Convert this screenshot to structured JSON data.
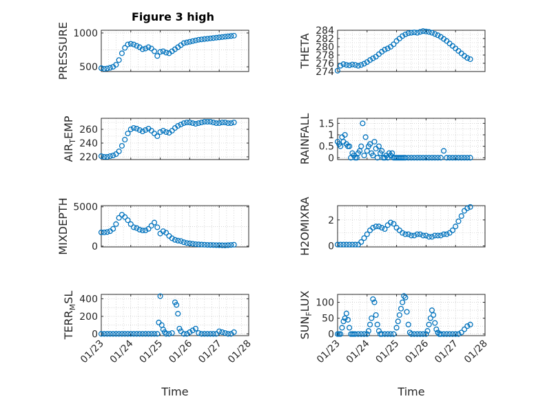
{
  "figure": {
    "title": "Figure 3 high"
  },
  "style": {
    "marker_color": "#0072BD",
    "axis_color": "#262626",
    "grid_color": "#b8b8b8"
  },
  "date_ticks": [
    "01/23",
    "01/24",
    "01/25",
    "01/26",
    "01/27",
    "01/28"
  ],
  "chart_data": [
    {
      "type": "scatter",
      "ylabel": "PRESSURE",
      "ylabel_main": "PRESSURE",
      "ylabel_sub": "",
      "ylabel_tail": "",
      "xlabel": "",
      "xlim": [
        0,
        5
      ],
      "ylim": [
        430,
        1040
      ],
      "yticks": [
        "500",
        "1000"
      ],
      "ytick_values": [
        500,
        1000
      ],
      "grid": true,
      "x_tick_labels_shown": false,
      "x": [
        0.0,
        0.1,
        0.2,
        0.3,
        0.4,
        0.5,
        0.6,
        0.7,
        0.8,
        0.9,
        1.0,
        1.1,
        1.2,
        1.3,
        1.4,
        1.5,
        1.6,
        1.7,
        1.8,
        1.9,
        2.0,
        2.1,
        2.2,
        2.3,
        2.4,
        2.5,
        2.6,
        2.7,
        2.8,
        2.9,
        3.0,
        3.1,
        3.2,
        3.3,
        3.4,
        3.5,
        3.6,
        3.7,
        3.8,
        3.9,
        4.0,
        4.1,
        4.2,
        4.3,
        4.4,
        4.5
      ],
      "y": [
        480,
        470,
        475,
        485,
        500,
        530,
        600,
        700,
        780,
        830,
        840,
        830,
        810,
        790,
        760,
        770,
        790,
        770,
        730,
        660,
        720,
        730,
        710,
        700,
        730,
        760,
        790,
        820,
        850,
        860,
        870,
        880,
        890,
        900,
        905,
        910,
        915,
        920,
        925,
        930,
        935,
        940,
        945,
        950,
        955,
        960
      ]
    },
    {
      "type": "scatter",
      "ylabel": "THETA",
      "ylabel_main": "THETA",
      "ylabel_sub": "",
      "ylabel_tail": "",
      "xlabel": "",
      "xlim": [
        0,
        5
      ],
      "ylim": [
        274,
        284
      ],
      "yticks": [
        "274",
        "276",
        "278",
        "280",
        "282",
        "284"
      ],
      "ytick_values": [
        274,
        276,
        278,
        280,
        282,
        284
      ],
      "grid": true,
      "x_tick_labels_shown": false,
      "x": [
        0.0,
        0.1,
        0.2,
        0.3,
        0.4,
        0.5,
        0.6,
        0.7,
        0.8,
        0.9,
        1.0,
        1.1,
        1.2,
        1.3,
        1.4,
        1.5,
        1.6,
        1.7,
        1.8,
        1.9,
        2.0,
        2.1,
        2.2,
        2.3,
        2.4,
        2.5,
        2.6,
        2.7,
        2.8,
        2.9,
        3.0,
        3.1,
        3.2,
        3.3,
        3.4,
        3.5,
        3.6,
        3.7,
        3.8,
        3.9,
        4.0,
        4.1,
        4.2,
        4.3,
        4.4,
        4.5
      ],
      "y": [
        274.2,
        275.4,
        275.8,
        275.6,
        275.5,
        275.7,
        275.6,
        275.4,
        275.6,
        275.9,
        276.3,
        276.8,
        277.2,
        277.6,
        278.2,
        278.8,
        279.3,
        279.6,
        280.0,
        280.6,
        281.4,
        282.0,
        282.6,
        283.0,
        283.3,
        283.4,
        283.5,
        283.4,
        283.6,
        283.8,
        283.7,
        283.6,
        283.4,
        283.1,
        282.8,
        282.4,
        281.9,
        281.4,
        280.8,
        280.2,
        279.6,
        279.0,
        278.4,
        277.8,
        277.3,
        277.0
      ]
    },
    {
      "type": "scatter",
      "ylabel": "AIR_TEMP",
      "ylabel_main": "AIR",
      "ylabel_sub": "T",
      "ylabel_tail": "EMP",
      "xlabel": "",
      "xlim": [
        0,
        5
      ],
      "ylim": [
        216,
        276
      ],
      "yticks": [
        "220",
        "240",
        "260"
      ],
      "ytick_values": [
        220,
        240,
        260
      ],
      "grid": true,
      "x_tick_labels_shown": false,
      "x": [
        0.0,
        0.1,
        0.2,
        0.3,
        0.4,
        0.5,
        0.6,
        0.7,
        0.8,
        0.9,
        1.0,
        1.1,
        1.2,
        1.3,
        1.4,
        1.5,
        1.6,
        1.7,
        1.8,
        1.9,
        2.0,
        2.1,
        2.2,
        2.3,
        2.4,
        2.5,
        2.6,
        2.7,
        2.8,
        2.9,
        3.0,
        3.1,
        3.2,
        3.3,
        3.4,
        3.5,
        3.6,
        3.7,
        3.8,
        3.9,
        4.0,
        4.1,
        4.2,
        4.3,
        4.4,
        4.5
      ],
      "y": [
        221,
        220,
        220,
        221,
        222,
        224,
        228,
        236,
        245,
        254,
        260,
        262,
        261,
        259,
        257,
        259,
        261,
        258,
        254,
        250,
        256,
        258,
        256,
        255,
        258,
        262,
        265,
        267,
        269,
        270,
        270,
        269,
        268,
        269,
        270,
        271,
        271,
        271,
        270,
        269,
        269,
        270,
        270,
        269,
        269,
        270
      ]
    },
    {
      "type": "scatter",
      "ylabel": "RAINFALL",
      "ylabel_main": "RAINFALL",
      "ylabel_sub": "",
      "ylabel_tail": "",
      "xlabel": "",
      "xlim": [
        0,
        5
      ],
      "ylim": [
        -0.08,
        1.72
      ],
      "yticks": [
        "0",
        "0.5",
        "1",
        "1.5"
      ],
      "ytick_values": [
        0,
        0.5,
        1,
        1.5
      ],
      "grid": true,
      "x_tick_labels_shown": false,
      "x": [
        0.0,
        0.05,
        0.1,
        0.15,
        0.2,
        0.25,
        0.3,
        0.35,
        0.4,
        0.45,
        0.5,
        0.55,
        0.6,
        0.65,
        0.7,
        0.75,
        0.8,
        0.85,
        0.9,
        0.95,
        1.0,
        1.05,
        1.1,
        1.15,
        1.2,
        1.25,
        1.3,
        1.35,
        1.4,
        1.45,
        1.5,
        1.55,
        1.6,
        1.65,
        1.7,
        1.75,
        1.8,
        1.85,
        1.9,
        1.95,
        2.0,
        2.05,
        2.1,
        2.15,
        2.2,
        2.25,
        2.3,
        2.4,
        2.5,
        2.6,
        2.7,
        2.8,
        2.9,
        3.0,
        3.1,
        3.2,
        3.3,
        3.4,
        3.5,
        3.6,
        3.7,
        3.8,
        3.9,
        4.0,
        4.1,
        4.2,
        4.3,
        4.4,
        4.5
      ],
      "y": [
        0.7,
        0.6,
        0.5,
        0.9,
        0.7,
        1.0,
        0.6,
        0.5,
        0.5,
        0.0,
        0.2,
        0.1,
        0.0,
        0.0,
        0.2,
        0.3,
        0.5,
        1.5,
        0.1,
        0.9,
        0.3,
        0.5,
        0.6,
        0.2,
        0.1,
        0.7,
        0.4,
        0.0,
        0.5,
        0.2,
        0.3,
        0.0,
        0.0,
        0.1,
        0.0,
        0.2,
        0.1,
        0.2,
        0.0,
        0.0,
        0.0,
        0.0,
        0.0,
        0.0,
        0.0,
        0.0,
        0.0,
        0.0,
        0.0,
        0.0,
        0.0,
        0.0,
        0.0,
        0.0,
        0.0,
        0.0,
        0.0,
        0.0,
        0.0,
        0.3,
        0.0,
        0.0,
        0.0,
        0.0,
        0.0,
        0.0,
        0.0,
        0.0,
        0.0
      ]
    },
    {
      "type": "scatter",
      "ylabel": "MIXDEPTH",
      "ylabel_main": "MIXDEPTH",
      "ylabel_sub": "",
      "ylabel_tail": "",
      "xlabel": "",
      "xlim": [
        0,
        5
      ],
      "ylim": [
        -100,
        5150
      ],
      "yticks": [
        "0",
        "5000"
      ],
      "ytick_values": [
        0,
        5000
      ],
      "grid": true,
      "x_tick_labels_shown": false,
      "x": [
        0.0,
        0.1,
        0.2,
        0.3,
        0.4,
        0.5,
        0.6,
        0.7,
        0.8,
        0.9,
        1.0,
        1.1,
        1.2,
        1.3,
        1.4,
        1.5,
        1.6,
        1.7,
        1.8,
        1.9,
        2.0,
        2.1,
        2.2,
        2.3,
        2.4,
        2.5,
        2.6,
        2.7,
        2.8,
        2.9,
        3.0,
        3.1,
        3.2,
        3.3,
        3.4,
        3.5,
        3.6,
        3.7,
        3.8,
        3.9,
        4.0,
        4.1,
        4.2,
        4.3,
        4.4,
        4.5
      ],
      "y": [
        1750,
        1750,
        1800,
        1900,
        2200,
        2800,
        3600,
        4000,
        3700,
        3300,
        2800,
        2400,
        2300,
        2100,
        2000,
        2000,
        2200,
        2600,
        3000,
        2400,
        1600,
        1900,
        1700,
        1300,
        1000,
        800,
        700,
        650,
        500,
        400,
        350,
        300,
        250,
        220,
        200,
        180,
        160,
        150,
        140,
        130,
        120,
        110,
        100,
        120,
        150,
        180
      ]
    },
    {
      "type": "scatter",
      "ylabel": "H2OMIXRA",
      "ylabel_main": "H2OMIXRA",
      "ylabel_sub": "",
      "ylabel_tail": "",
      "xlabel": "",
      "xlim": [
        0,
        5
      ],
      "ylim": [
        -0.08,
        3.1
      ],
      "yticks": [
        "0",
        "2"
      ],
      "ytick_values": [
        0,
        2
      ],
      "grid": true,
      "x_tick_labels_shown": false,
      "x": [
        0.0,
        0.1,
        0.2,
        0.3,
        0.4,
        0.5,
        0.6,
        0.7,
        0.8,
        0.9,
        1.0,
        1.1,
        1.2,
        1.3,
        1.4,
        1.5,
        1.6,
        1.7,
        1.8,
        1.9,
        2.0,
        2.1,
        2.2,
        2.3,
        2.4,
        2.5,
        2.6,
        2.7,
        2.8,
        2.9,
        3.0,
        3.1,
        3.2,
        3.3,
        3.4,
        3.5,
        3.6,
        3.7,
        3.8,
        3.9,
        4.0,
        4.1,
        4.2,
        4.3,
        4.4,
        4.5
      ],
      "y": [
        0.1,
        0.1,
        0.1,
        0.1,
        0.1,
        0.1,
        0.1,
        0.1,
        0.3,
        0.6,
        0.9,
        1.2,
        1.4,
        1.5,
        1.5,
        1.4,
        1.3,
        1.6,
        1.8,
        1.7,
        1.4,
        1.2,
        1.0,
        0.9,
        0.9,
        0.8,
        0.8,
        0.9,
        0.9,
        0.8,
        0.8,
        0.7,
        0.7,
        0.8,
        0.8,
        0.8,
        0.9,
        0.9,
        1.0,
        1.2,
        1.5,
        1.9,
        2.3,
        2.7,
        2.9,
        3.0
      ]
    },
    {
      "type": "scatter",
      "ylabel": "TERR_MSL",
      "ylabel_main": "TERR",
      "ylabel_sub": "M",
      "ylabel_tail": "SL",
      "xlabel": "Time",
      "xlim": [
        0,
        5
      ],
      "ylim": [
        -20,
        450
      ],
      "yticks": [
        "0",
        "200",
        "400"
      ],
      "ytick_values": [
        0,
        200,
        400
      ],
      "grid": true,
      "x_tick_labels_shown": true,
      "x": [
        0.0,
        0.1,
        0.2,
        0.3,
        0.4,
        0.5,
        0.6,
        0.7,
        0.8,
        0.9,
        1.0,
        1.1,
        1.2,
        1.3,
        1.4,
        1.5,
        1.6,
        1.7,
        1.8,
        1.9,
        1.95,
        2.0,
        2.05,
        2.1,
        2.15,
        2.2,
        2.3,
        2.4,
        2.5,
        2.55,
        2.6,
        2.65,
        2.7,
        2.8,
        2.9,
        3.0,
        3.1,
        3.2,
        3.3,
        3.4,
        3.5,
        3.6,
        3.7,
        3.8,
        3.9,
        4.0,
        4.1,
        4.2,
        4.3,
        4.4,
        4.5
      ],
      "y": [
        0,
        0,
        0,
        0,
        0,
        0,
        0,
        0,
        0,
        0,
        0,
        0,
        0,
        0,
        0,
        0,
        0,
        0,
        0,
        0,
        130,
        430,
        100,
        50,
        20,
        0,
        0,
        10,
        360,
        330,
        230,
        60,
        30,
        0,
        0,
        20,
        40,
        60,
        10,
        0,
        0,
        0,
        0,
        0,
        0,
        30,
        20,
        10,
        0,
        0,
        20
      ]
    },
    {
      "type": "scatter",
      "ylabel": "SUN_FLUX",
      "ylabel_main": "SUN",
      "ylabel_sub": "F",
      "ylabel_tail": "LUX",
      "xlabel": "Time",
      "xlim": [
        0,
        5
      ],
      "ylim": [
        -5,
        125
      ],
      "yticks": [
        "0",
        "50",
        "100"
      ],
      "ytick_values": [
        0,
        50,
        100
      ],
      "grid": true,
      "x_tick_labels_shown": true,
      "x": [
        0.0,
        0.05,
        0.1,
        0.15,
        0.2,
        0.25,
        0.3,
        0.35,
        0.4,
        0.45,
        0.5,
        0.55,
        0.6,
        0.7,
        0.8,
        0.9,
        1.0,
        1.05,
        1.1,
        1.15,
        1.2,
        1.25,
        1.3,
        1.35,
        1.4,
        1.45,
        1.5,
        1.6,
        1.7,
        1.8,
        1.9,
        2.0,
        2.05,
        2.1,
        2.15,
        2.2,
        2.25,
        2.3,
        2.35,
        2.4,
        2.45,
        2.5,
        2.6,
        2.7,
        2.8,
        2.9,
        3.0,
        3.05,
        3.1,
        3.15,
        3.2,
        3.25,
        3.3,
        3.35,
        3.4,
        3.45,
        3.5,
        3.6,
        3.7,
        3.8,
        3.9,
        4.0,
        4.1,
        4.2,
        4.3,
        4.4,
        4.5
      ],
      "y": [
        0,
        0,
        0,
        20,
        40,
        50,
        65,
        45,
        20,
        0,
        0,
        0,
        0,
        0,
        0,
        0,
        0,
        10,
        30,
        50,
        110,
        100,
        60,
        30,
        10,
        0,
        0,
        0,
        0,
        0,
        0,
        20,
        40,
        60,
        80,
        100,
        120,
        115,
        70,
        30,
        5,
        0,
        0,
        0,
        0,
        0,
        0,
        10,
        30,
        50,
        75,
        60,
        35,
        15,
        5,
        0,
        0,
        0,
        0,
        0,
        0,
        0,
        0,
        5,
        15,
        25,
        30
      ]
    }
  ]
}
